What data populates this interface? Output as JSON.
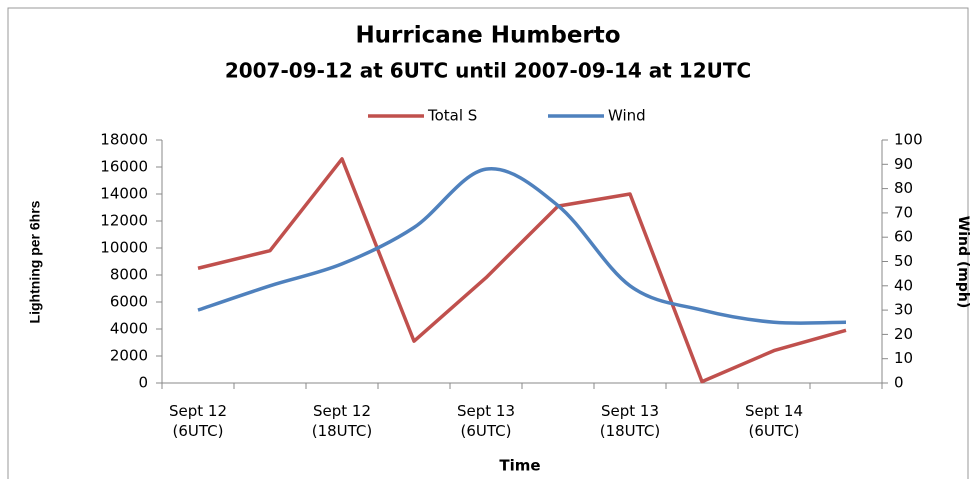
{
  "chart_data": {
    "type": "line",
    "title": "Hurricane Humberto",
    "subtitle": "2007-09-12 at 6UTC until 2007-09-14 at 12UTC",
    "x_label": "Time",
    "y_label": "Lightning per 6hrs",
    "y2_label": "Wind (mph)",
    "categories": [
      "Sept 12 (6UTC)",
      null,
      "Sept 12 (18UTC)",
      null,
      "Sept 13 (6UTC)",
      null,
      "Sept 13 (18UTC)",
      null,
      "Sept 14 (6UTC)",
      null
    ],
    "series": [
      {
        "name": "Total S",
        "color": "#c0504d",
        "values": [
          8500,
          9800,
          16600,
          3100,
          7800,
          13100,
          14000,
          100,
          2400,
          3900
        ]
      },
      {
        "name": "Wind",
        "color": "#4f81bd",
        "axis": "y2",
        "smooth": true,
        "values": [
          30,
          40,
          49,
          64,
          88,
          73,
          40,
          30,
          25,
          25
        ]
      }
    ],
    "ylim": [
      0,
      18000
    ],
    "yticks": [
      0,
      2000,
      4000,
      6000,
      8000,
      10000,
      12000,
      14000,
      16000,
      18000
    ],
    "y2lim": [
      0,
      100
    ],
    "y2ticks": [
      0,
      10,
      20,
      30,
      40,
      50,
      60,
      70,
      80,
      90,
      100
    ],
    "legend": "top",
    "grid": false
  }
}
